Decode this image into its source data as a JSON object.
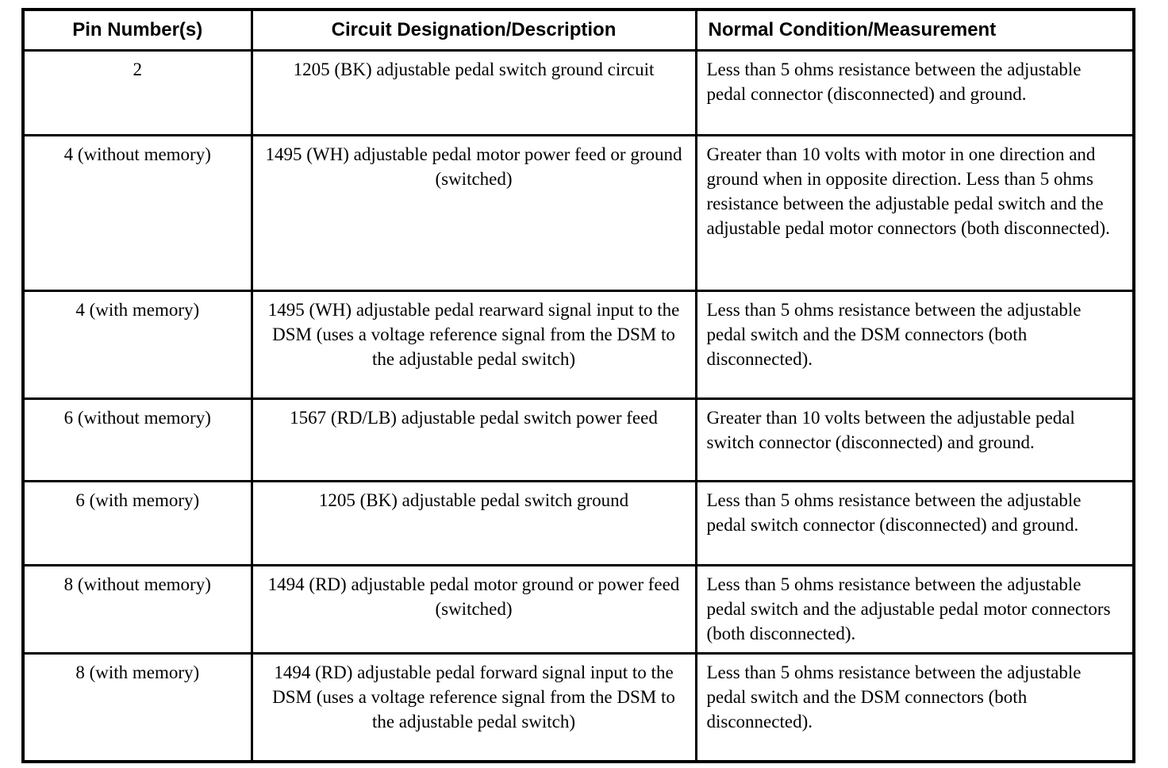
{
  "table": {
    "columns": [
      "Pin Number(s)",
      "Circuit Designation/Description",
      "Normal Condition/Measurement"
    ],
    "rows": [
      {
        "pin": "2",
        "circuit": "1205 (BK) adjustable pedal switch ground circuit",
        "normal": "Less than 5 ohms resistance between the adjustable pedal connector (disconnected) and ground."
      },
      {
        "pin": "4 (without memory)",
        "circuit": "1495 (WH) adjustable pedal motor power feed or ground (switched)",
        "normal": "Greater than 10 volts with motor in one direction and ground when in opposite direction. Less than 5 ohms resistance between the adjustable pedal switch and the adjustable pedal motor connectors (both disconnected)."
      },
      {
        "pin": "4 (with memory)",
        "circuit": "1495 (WH) adjustable pedal rearward signal input to the DSM (uses a voltage reference signal from the DSM to the adjustable pedal switch)",
        "normal": "Less than 5 ohms resistance between the adjustable pedal switch and the DSM connectors (both disconnected)."
      },
      {
        "pin": "6 (without memory)",
        "circuit": "1567 (RD/LB) adjustable pedal switch power feed",
        "normal": "Greater than 10 volts between the adjustable pedal switch connector (disconnected) and ground."
      },
      {
        "pin": "6 (with memory)",
        "circuit": "1205 (BK) adjustable pedal switch ground",
        "normal": "Less than 5 ohms resistance between the adjustable pedal switch connector (disconnected) and ground."
      },
      {
        "pin": "8 (without memory)",
        "circuit": "1494 (RD) adjustable pedal motor ground or power feed (switched)",
        "normal": "Less than 5 ohms resistance between the adjustable pedal switch and the adjustable pedal motor connectors (both disconnected)."
      },
      {
        "pin": "8 (with memory)",
        "circuit": "1494 (RD) adjustable pedal forward signal input to the DSM (uses a voltage reference signal from the DSM to the adjustable pedal switch)",
        "normal": "Less than 5 ohms resistance between the adjustable pedal switch and the DSM connectors (both disconnected)."
      }
    ],
    "colors": {
      "border": "#000000",
      "background": "#ffffff",
      "text": "#000000"
    }
  }
}
